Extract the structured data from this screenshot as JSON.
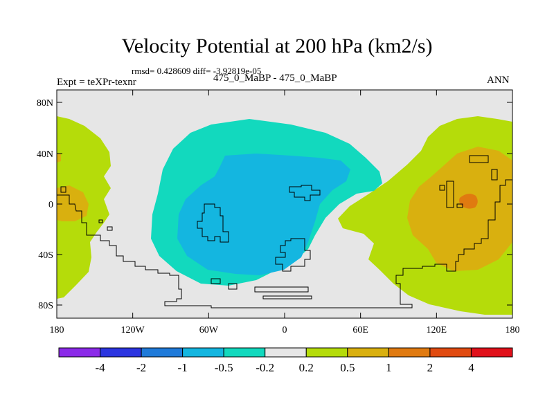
{
  "title": "Velocity Potential at 200 hPa (km2/s)",
  "stats": "rmsd= 0.428609 diff= -3.92819e-05",
  "expt": "Expt = teXPr-texnr",
  "cases": "475_0_MaBP - 475_0_MaBP",
  "season": "ANN",
  "lat_ticks": [
    "80N",
    "40N",
    "0",
    "40S",
    "80S"
  ],
  "lon_ticks": [
    "180",
    "120W",
    "60W",
    "0",
    "60E",
    "120E",
    "180"
  ],
  "colorbar": {
    "colors": [
      "#8b2ae8",
      "#2c35e0",
      "#1f7ad9",
      "#14b6e0",
      "#12d9be",
      "#e6e6e6",
      "#b5dc0a",
      "#d9b00f",
      "#e07a10",
      "#e04a10",
      "#e0101a"
    ],
    "labels": [
      "-4",
      "-2",
      "-1",
      "-0.5",
      "-0.2",
      "0.2",
      "0.5",
      "1",
      "2",
      "4"
    ]
  },
  "map_colors": {
    "background": "#e6e6e6",
    "yellow_green": "#b5dc0a",
    "orange": "#d9b00f",
    "dark_orange": "#e07a10",
    "teal": "#12d9be",
    "light_blue": "#14b6e0"
  }
}
